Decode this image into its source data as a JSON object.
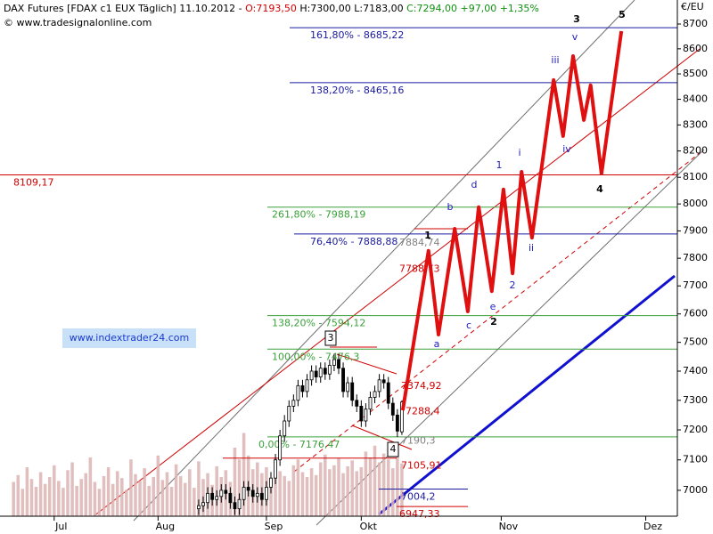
{
  "header": {
    "title": "DAX Futures [FDAX c1 EUX  Täglich]",
    "date": "11.10.2012 -",
    "open": "O:7193,50",
    "high": "H:7300,00",
    "low": "L:7183,00",
    "change": "C:7294,00 +97,00 +1,35%",
    "source": "© www.tradesignalonline.com",
    "watermark": "www.indextrader24.com"
  },
  "chart_data": {
    "type": "candlestick",
    "log_scale": true,
    "grid": false,
    "y_unit": "€/EU",
    "ylim": [
      6916,
      8798
    ],
    "yticks": [
      7000,
      7100,
      7200,
      7300,
      7400,
      7500,
      7600,
      7700,
      7800,
      7900,
      8000,
      8100,
      8200,
      8300,
      8400,
      8500,
      8600,
      8700
    ],
    "xlim": [
      0,
      150
    ],
    "xticks": [
      {
        "value": 12,
        "label": "Jul"
      },
      {
        "value": 35,
        "label": "Aug"
      },
      {
        "value": 59,
        "label": "Sep"
      },
      {
        "value": 80,
        "label": "Okt"
      },
      {
        "value": 111,
        "label": "Nov"
      },
      {
        "value": 143,
        "label": "Dez"
      }
    ],
    "up_color": "#ffffff",
    "down_color": "#000000",
    "candles": {
      "x": [
        44,
        45,
        46,
        47,
        48,
        49,
        50,
        51,
        52,
        53,
        54,
        55,
        56,
        57,
        58,
        59,
        60,
        61,
        62,
        63,
        64,
        65,
        66,
        67,
        68,
        69,
        70,
        71,
        72,
        73,
        74,
        75,
        76,
        77,
        78,
        79,
        80,
        81,
        82,
        83,
        84,
        85,
        86,
        87,
        88,
        89
      ],
      "open": [
        6940,
        6950,
        6960,
        6990,
        6970,
        6980,
        7000,
        6990,
        6960,
        6940,
        6970,
        7010,
        7000,
        6980,
        6990,
        6970,
        7010,
        7040,
        7100,
        7180,
        7230,
        7280,
        7300,
        7350,
        7330,
        7370,
        7400,
        7380,
        7410,
        7390,
        7420,
        7440,
        7410,
        7330,
        7360,
        7300,
        7280,
        7230,
        7270,
        7310,
        7330,
        7370,
        7360,
        7290,
        7250,
        7193.5
      ],
      "high": [
        6970,
        6980,
        7010,
        7010,
        7000,
        7020,
        7020,
        7010,
        6980,
        6990,
        7030,
        7030,
        7020,
        7010,
        7010,
        7030,
        7060,
        7120,
        7200,
        7250,
        7300,
        7320,
        7370,
        7370,
        7390,
        7420,
        7420,
        7430,
        7430,
        7440,
        7460,
        7460,
        7430,
        7380,
        7380,
        7320,
        7300,
        7290,
        7330,
        7350,
        7390,
        7390,
        7380,
        7310,
        7270,
        7300
      ],
      "low": [
        6920,
        6930,
        6940,
        6950,
        6950,
        6960,
        6970,
        6940,
        6920,
        6920,
        6950,
        6980,
        6960,
        6960,
        6950,
        6950,
        6990,
        7020,
        7080,
        7160,
        7210,
        7260,
        7280,
        7310,
        7310,
        7350,
        7360,
        7360,
        7370,
        7370,
        7400,
        7390,
        7310,
        7310,
        7280,
        7260,
        7210,
        7210,
        7250,
        7290,
        7310,
        7340,
        7270,
        7230,
        7176,
        7183
      ],
      "close": [
        6950,
        6960,
        6990,
        6970,
        6980,
        7000,
        6990,
        6960,
        6940,
        6970,
        7010,
        7000,
        6980,
        6990,
        6970,
        7010,
        7040,
        7100,
        7180,
        7230,
        7280,
        7300,
        7350,
        7330,
        7370,
        7400,
        7380,
        7410,
        7390,
        7420,
        7440,
        7410,
        7330,
        7360,
        7300,
        7280,
        7230,
        7270,
        7310,
        7330,
        7370,
        7360,
        7290,
        7250,
        7196,
        7294
      ]
    },
    "volume": {
      "color": "#dcb4b4",
      "ylim": [
        0,
        100
      ],
      "x": [
        3,
        4,
        5,
        6,
        7,
        8,
        9,
        10,
        11,
        12,
        13,
        14,
        15,
        16,
        17,
        18,
        19,
        20,
        21,
        22,
        23,
        24,
        25,
        26,
        27,
        28,
        29,
        30,
        31,
        32,
        33,
        34,
        35,
        36,
        37,
        38,
        39,
        40,
        41,
        42,
        43,
        44,
        45,
        46,
        47,
        48,
        49,
        50,
        51,
        52,
        53,
        54,
        55,
        56,
        57,
        58,
        59,
        60,
        61,
        62,
        63,
        64,
        65,
        66,
        67,
        68,
        69,
        70,
        71,
        72,
        73,
        74,
        75,
        76,
        77,
        78,
        79,
        80,
        81,
        82,
        83,
        84,
        85,
        86,
        87,
        88,
        89
      ],
      "values": [
        35,
        42,
        28,
        50,
        38,
        30,
        45,
        33,
        40,
        52,
        36,
        29,
        47,
        55,
        31,
        38,
        44,
        60,
        35,
        28,
        41,
        50,
        33,
        46,
        39,
        27,
        58,
        43,
        36,
        49,
        31,
        40,
        62,
        37,
        45,
        30,
        53,
        41,
        34,
        48,
        29,
        56,
        38,
        44,
        32,
        51,
        40,
        47,
        35,
        70,
        58,
        85,
        62,
        48,
        55,
        44,
        50,
        38,
        60,
        46,
        41,
        36,
        52,
        58,
        45,
        40,
        49,
        42,
        55,
        63,
        48,
        52,
        59,
        44,
        51,
        57,
        46,
        50,
        66,
        60,
        72,
        55,
        64,
        58,
        49,
        68,
        54
      ]
    },
    "forecast": {
      "color": "#e01010",
      "x": [
        89.2,
        94.9,
        97.1,
        100.7,
        103.6,
        106.0,
        108.9,
        111.5,
        113.5,
        115.5,
        117.8,
        122.6,
        124.7,
        126.9,
        129.3,
        130.8,
        133.2,
        137.6
      ],
      "values": [
        7266,
        7827,
        7527,
        7908,
        7609,
        7988,
        7681,
        8054,
        7745,
        8121,
        7875,
        8476,
        8257,
        8571,
        8319,
        8455,
        8114,
        8671
      ]
    },
    "levels": [
      {
        "label": "8109,17",
        "value": 8109.17,
        "color": "#d00000"
      },
      {
        "label": "161,80% - 8685,22",
        "value": 8685.22,
        "color": "#1a1aa0"
      },
      {
        "label": "138,20% - 8465,16",
        "value": 8465.16,
        "color": "#1a1aa0"
      },
      {
        "label": "76,40% - 7888,88",
        "value": 7888.88,
        "color": "#1a1aa0"
      },
      {
        "label": "261,80% - 7988,19",
        "value": 7988.19,
        "color": "#3aa03a"
      },
      {
        "label": "138,20% - 7594,12",
        "value": 7594.12,
        "color": "#3aa03a"
      },
      {
        "label": "100,00% - 7476,3",
        "value": 7476.3,
        "color": "#3aa03a"
      },
      {
        "label": "0,00% - 7176,47",
        "value": 7176.47,
        "color": "#3aa03a"
      },
      {
        "label": "7884,74",
        "value": 7884.74,
        "color": "#808080"
      },
      {
        "label": "7788,73",
        "value": 7788.73,
        "color": "#d00000"
      },
      {
        "label": "7374,92",
        "value": 7374.92,
        "color": "#d00000"
      },
      {
        "label": "7288,4",
        "value": 7288.4,
        "color": "#d00000"
      },
      {
        "label": "7190,3",
        "value": 7190.3,
        "color": "#808080"
      },
      {
        "label": "7105,91",
        "value": 7105.91,
        "color": "#d00000"
      },
      {
        "label": "7004,2",
        "value": 7004.2,
        "color": "#1a1aa0"
      },
      {
        "label": "6947,33",
        "value": 6947.33,
        "color": "#d00000"
      }
    ],
    "wave_labels": [
      "3",
      "5",
      "v",
      "iii",
      "iv",
      "4",
      "i",
      "ii",
      "1",
      "2",
      "b",
      "d",
      "a",
      "c",
      "e",
      "2",
      "1",
      "3",
      "4"
    ]
  }
}
